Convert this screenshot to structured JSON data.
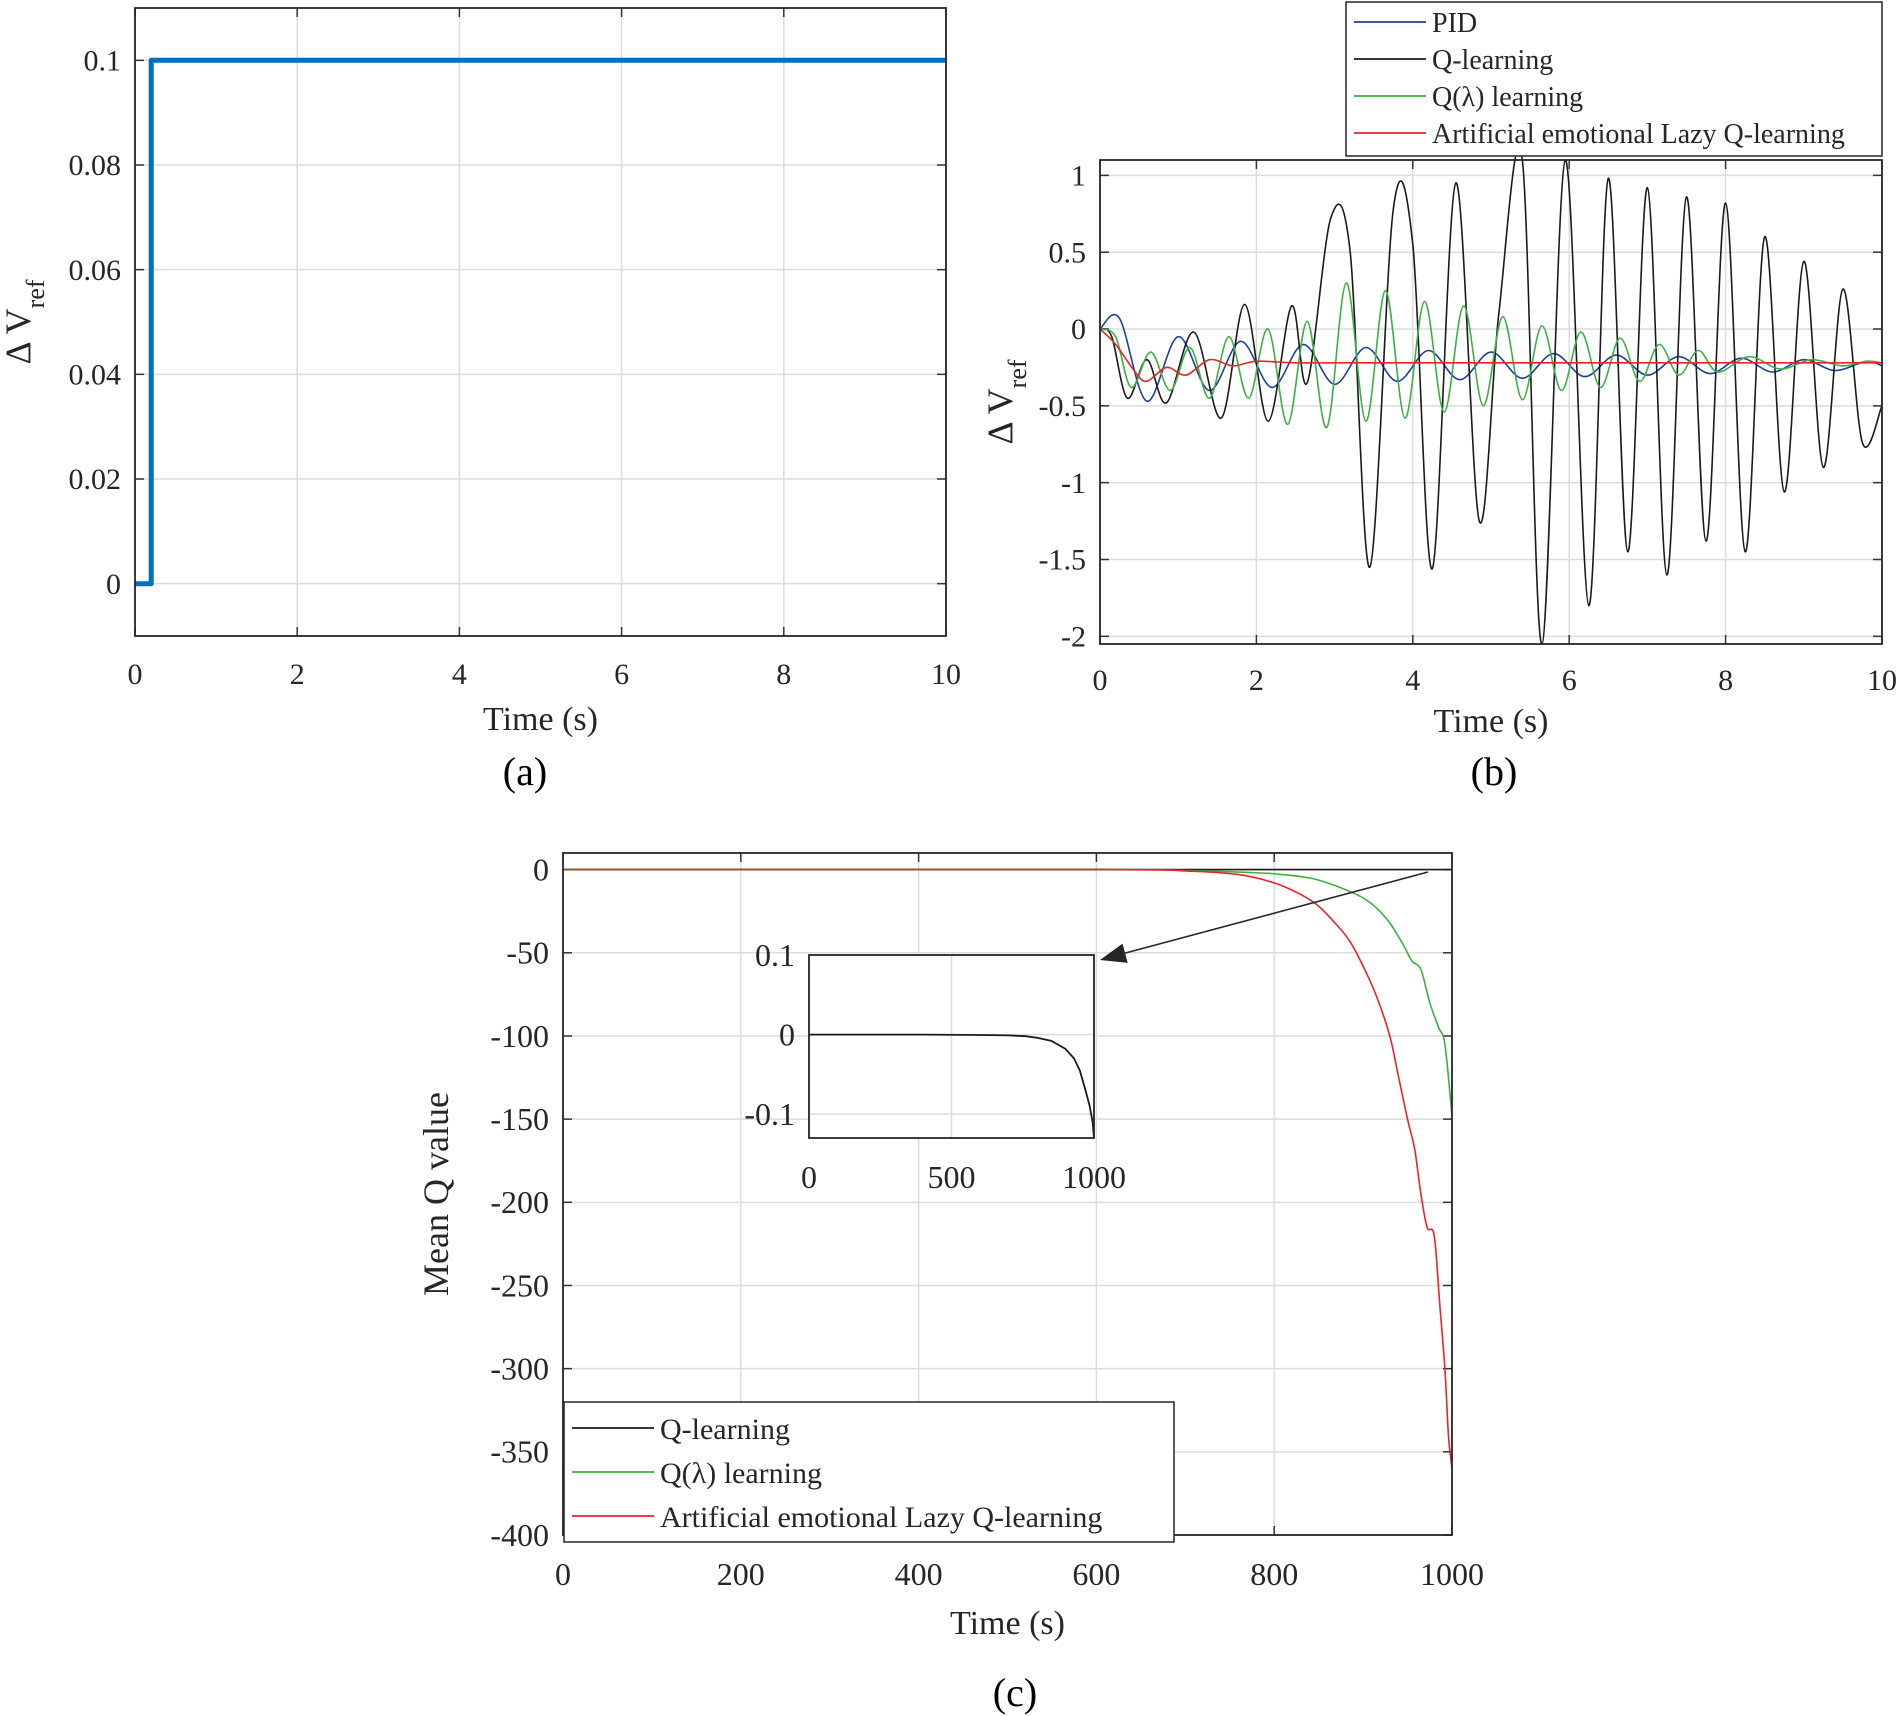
{
  "chart_data": [
    {
      "id": "a",
      "type": "line",
      "panel_label": "(a)",
      "xlabel": "Time (s)",
      "ylabel": "Δ V",
      "ylabel_sub": "ref",
      "xlim": [
        0,
        10
      ],
      "ylim": [
        -0.01,
        0.11
      ],
      "xticks": [
        0,
        2,
        4,
        6,
        8,
        10
      ],
      "yticks": [
        0,
        0.02,
        0.04,
        0.06,
        0.08,
        0.1
      ],
      "ytick_labels": [
        "0",
        "0.02",
        "0.04",
        "0.06",
        "0.08",
        "0.1"
      ],
      "grid": true,
      "series": [
        {
          "name": "ΔVref step",
          "color": "#0072bd",
          "x": [
            0,
            0.2,
            0.2,
            10
          ],
          "y": [
            0,
            0,
            0.1,
            0.1
          ]
        }
      ]
    },
    {
      "id": "b",
      "type": "line",
      "panel_label": "(b)",
      "xlabel": "Time (s)",
      "ylabel": "Δ V",
      "ylabel_sub": "ref",
      "xlim": [
        0,
        10
      ],
      "ylim": [
        -2.05,
        1.1
      ],
      "xticks": [
        0,
        2,
        4,
        6,
        8,
        10
      ],
      "yticks": [
        1,
        0.5,
        0,
        -0.5,
        -1,
        -1.5,
        -2
      ],
      "ytick_labels": [
        "1",
        "0.5",
        "0",
        "-0.5",
        "-1",
        "-1.5",
        "-2"
      ],
      "grid": true,
      "legend_position": "top-right (outside, above axes)",
      "series": [
        {
          "name": "PID",
          "color": "#1f3f99",
          "x": [
            0,
            0.25,
            0.6,
            1.0,
            1.4,
            1.8,
            2.2,
            2.6,
            3.0,
            3.4,
            3.8,
            4.2,
            4.6,
            5.0,
            5.4,
            5.8,
            6.2,
            6.6,
            7.0,
            7.4,
            7.8,
            8.2,
            8.6,
            9.0,
            9.4,
            9.8,
            10
          ],
          "y": [
            0,
            0.07,
            -0.47,
            -0.05,
            -0.4,
            -0.08,
            -0.38,
            -0.1,
            -0.36,
            -0.12,
            -0.34,
            -0.14,
            -0.33,
            -0.15,
            -0.32,
            -0.16,
            -0.31,
            -0.17,
            -0.3,
            -0.18,
            -0.29,
            -0.19,
            -0.28,
            -0.2,
            -0.27,
            -0.21,
            -0.24
          ]
        },
        {
          "name": "Q-learning",
          "color": "#1a1a1a",
          "x": [
            0,
            0.15,
            0.35,
            0.6,
            0.85,
            1.2,
            1.55,
            1.85,
            2.15,
            2.45,
            2.65,
            2.95,
            3.2,
            3.45,
            3.75,
            4.0,
            4.25,
            4.55,
            4.85,
            5.1,
            5.4,
            5.65,
            5.95,
            6.25,
            6.5,
            6.75,
            7.0,
            7.25,
            7.5,
            7.75,
            8.0,
            8.25,
            8.5,
            8.75,
            9.0,
            9.25,
            9.5,
            9.75,
            10
          ],
          "y": [
            0,
            -0.05,
            -0.45,
            -0.2,
            -0.48,
            -0.02,
            -0.58,
            0.16,
            -0.6,
            0.15,
            -0.35,
            0.72,
            0.5,
            -1.55,
            0.78,
            0.55,
            -1.56,
            0.95,
            -1.25,
            0.1,
            1.1,
            -2.05,
            1.1,
            -1.8,
            0.98,
            -1.45,
            0.92,
            -1.6,
            0.86,
            -1.38,
            0.82,
            -1.45,
            0.6,
            -1.06,
            0.44,
            -0.9,
            0.26,
            -0.74,
            -0.5
          ]
        },
        {
          "name": "Q(λ) learning",
          "color": "#3cb043",
          "x": [
            0,
            0.2,
            0.4,
            0.65,
            0.9,
            1.15,
            1.4,
            1.65,
            1.9,
            2.15,
            2.4,
            2.65,
            2.9,
            3.15,
            3.4,
            3.65,
            3.9,
            4.15,
            4.4,
            4.65,
            4.9,
            5.15,
            5.4,
            5.65,
            5.9,
            6.15,
            6.4,
            6.65,
            6.9,
            7.15,
            7.4,
            7.65,
            7.9,
            8.3,
            8.7,
            9.1,
            9.5,
            9.8,
            10
          ],
          "y": [
            0,
            -0.05,
            -0.38,
            -0.15,
            -0.4,
            -0.12,
            -0.45,
            -0.05,
            -0.45,
            0.0,
            -0.62,
            0.05,
            -0.64,
            0.3,
            -0.6,
            0.25,
            -0.58,
            0.18,
            -0.54,
            0.15,
            -0.5,
            0.08,
            -0.46,
            0.02,
            -0.4,
            -0.02,
            -0.38,
            -0.06,
            -0.34,
            -0.1,
            -0.3,
            -0.14,
            -0.28,
            -0.18,
            -0.26,
            -0.2,
            -0.24,
            -0.21,
            -0.22
          ]
        },
        {
          "name": "Artificial emotional Lazy Q-learning",
          "color": "#e8232d",
          "x": [
            0,
            0.2,
            0.45,
            0.6,
            0.85,
            1.1,
            1.4,
            1.7,
            2.0,
            2.5,
            3.0,
            4.0,
            6.0,
            8.0,
            10
          ],
          "y": [
            0,
            -0.1,
            -0.28,
            -0.34,
            -0.25,
            -0.3,
            -0.2,
            -0.24,
            -0.21,
            -0.22,
            -0.22,
            -0.22,
            -0.22,
            -0.22,
            -0.22
          ]
        }
      ]
    },
    {
      "id": "c",
      "type": "line",
      "panel_label": "(c)",
      "xlabel": "Time (s)",
      "ylabel": "Mean Q value",
      "xlim": [
        0,
        1000
      ],
      "ylim": [
        -400,
        10
      ],
      "xticks": [
        0,
        200,
        400,
        600,
        800,
        1000
      ],
      "yticks": [
        0,
        -50,
        -100,
        -150,
        -200,
        -250,
        -300,
        -350,
        -400
      ],
      "ytick_labels": [
        "0",
        "-50",
        "-100",
        "-150",
        "-200",
        "-250",
        "-300",
        "-350",
        "-400"
      ],
      "grid": true,
      "legend_position": "bottom-left",
      "series": [
        {
          "name": "Q-learning",
          "color": "#1a1a1a",
          "x": [
            0,
            1000
          ],
          "y": [
            0,
            0
          ]
        },
        {
          "name": "Q(λ) learning",
          "color": "#3cb043",
          "x": [
            0,
            600,
            700,
            760,
            800,
            840,
            860,
            880,
            900,
            915,
            930,
            945,
            955,
            965,
            975,
            985,
            992,
            1000
          ],
          "y": [
            0,
            0,
            -0.5,
            -1.5,
            -2.5,
            -5,
            -8,
            -12,
            -17,
            -23,
            -32,
            -45,
            -55,
            -60,
            -80,
            -95,
            -105,
            -148
          ]
        },
        {
          "name": "Artificial emotional Lazy Q-learning",
          "color": "#e8232d",
          "x": [
            0,
            600,
            700,
            760,
            800,
            830,
            850,
            870,
            885,
            900,
            915,
            930,
            940,
            950,
            958,
            965,
            972,
            980,
            986,
            992,
            996,
            1000
          ],
          "y": [
            0,
            0,
            -0.8,
            -3,
            -8,
            -15,
            -22,
            -33,
            -43,
            -58,
            -76,
            -100,
            -125,
            -150,
            -168,
            -195,
            -215,
            -220,
            -260,
            -300,
            -340,
            -360
          ]
        }
      ],
      "inset": {
        "xlim": [
          0,
          1000
        ],
        "ylim": [
          -0.13,
          0.1
        ],
        "xticks": [
          0,
          500,
          1000
        ],
        "yticks": [
          0.1,
          0,
          -0.1
        ],
        "ytick_labels": [
          "0.1",
          "0",
          "-0.1"
        ],
        "grid": true,
        "series": [
          {
            "name": "Q-learning (zoom)",
            "color": "#1a1a1a",
            "x": [
              0,
              400,
              600,
              700,
              760,
              800,
              850,
              900,
              930,
              950,
              970,
              985,
              995,
              1000
            ],
            "y": [
              0,
              0,
              -0.0005,
              -0.001,
              -0.002,
              -0.004,
              -0.008,
              -0.018,
              -0.03,
              -0.045,
              -0.07,
              -0.09,
              -0.11,
              -0.13
            ]
          }
        ]
      }
    }
  ]
}
